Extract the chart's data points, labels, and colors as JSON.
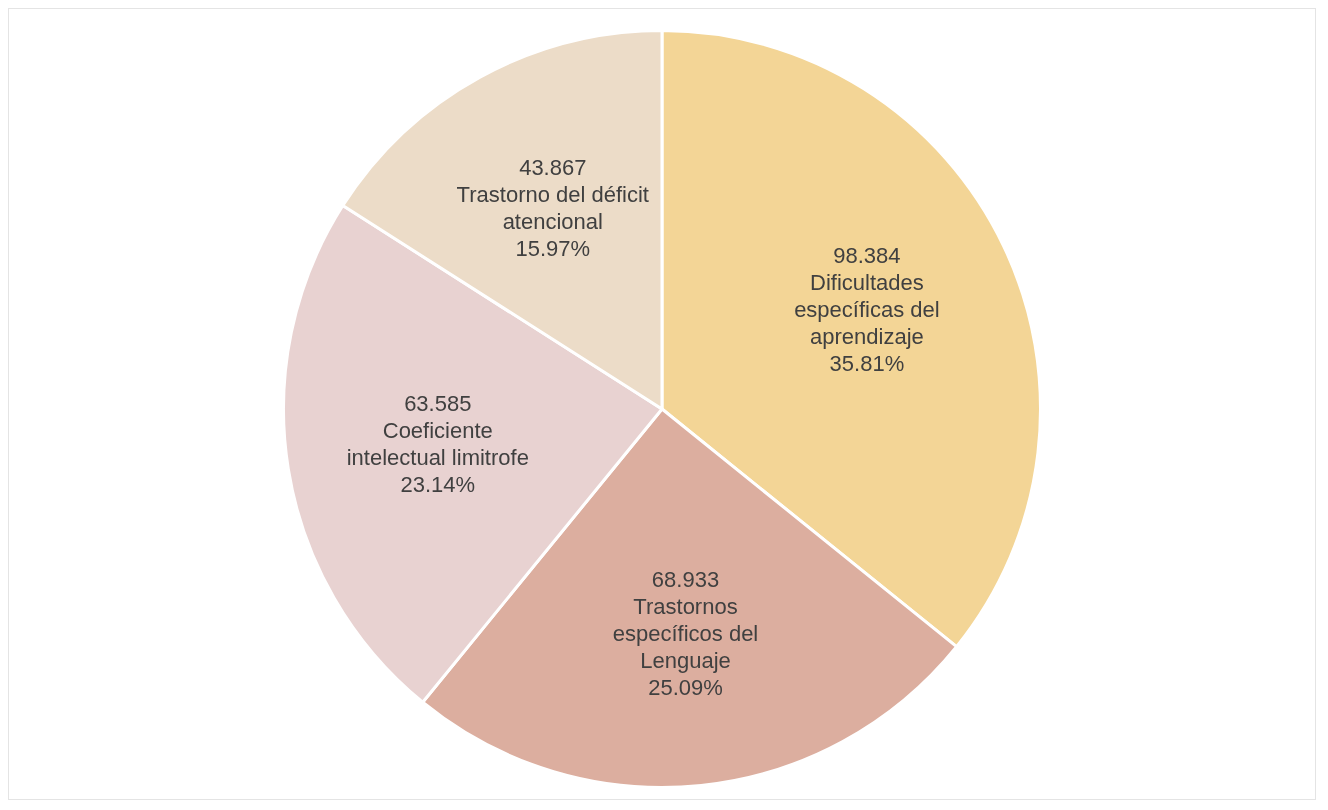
{
  "chart_data": {
    "type": "pie",
    "categories": [
      "Dificultades específicas del aprendizaje",
      "Trastornos específicos del Lenguaje",
      "Coeficiente intelectual limitrofe",
      "Trastorno del déficit atencional"
    ],
    "values": [
      35.81,
      25.09,
      23.14,
      15.97
    ],
    "value_labels": [
      "35.81%",
      "25.09%",
      "23.14%",
      "15.97%"
    ],
    "annotations": [
      "98.384",
      "68.933",
      "63.585",
      "43.867"
    ],
    "colors": [
      "#f3d596",
      "#dcae9f",
      "#e8d2d1",
      "#ecdcc8"
    ],
    "legend": false
  }
}
